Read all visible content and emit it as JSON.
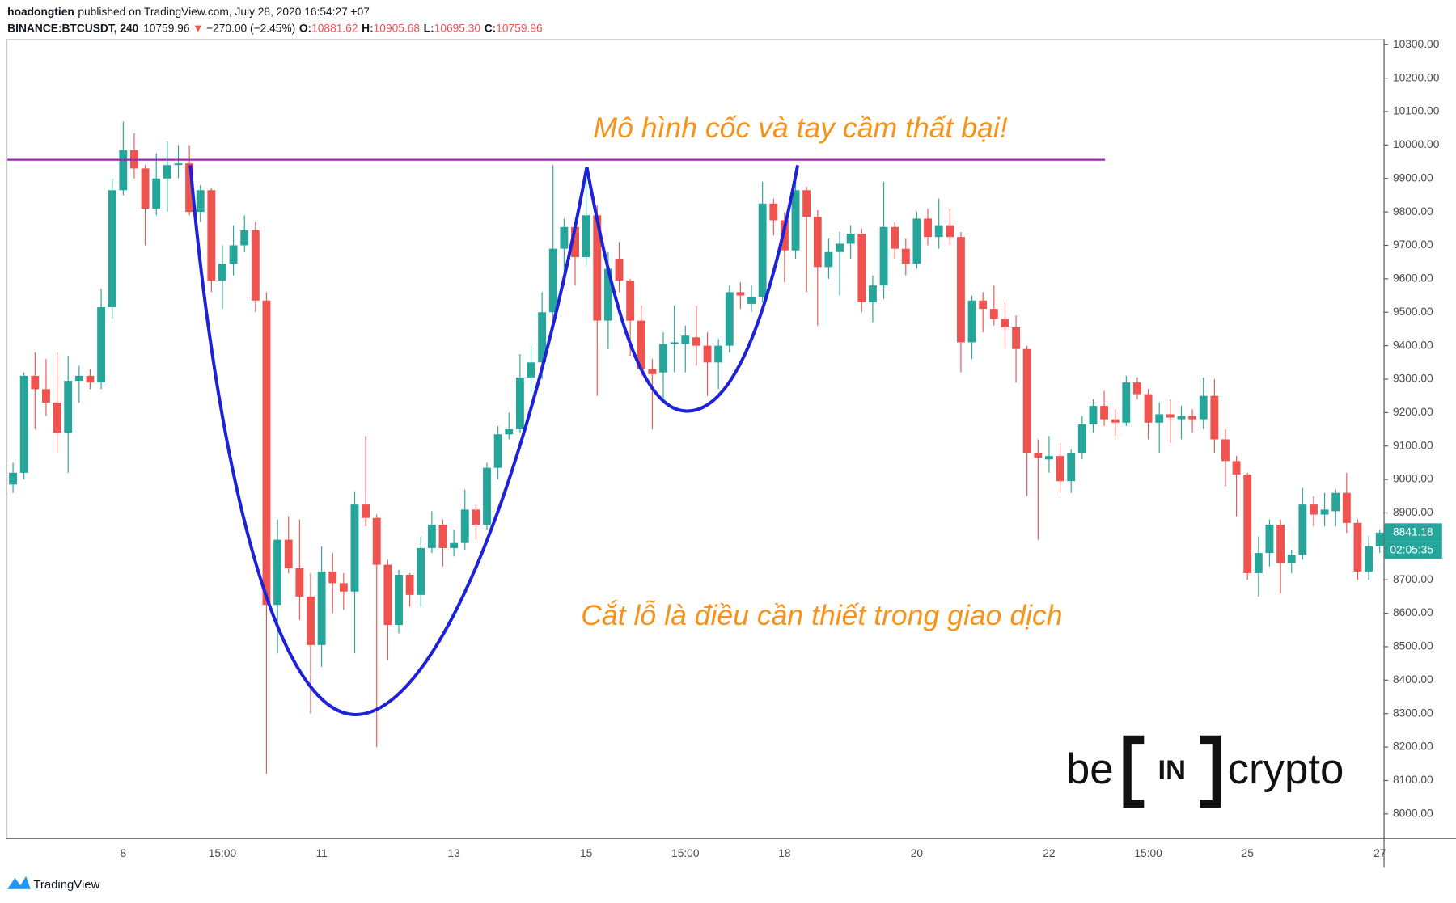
{
  "header": {
    "author": "hoadongtien",
    "published": "published on TradingView.com, July 28, 2020 16:54:27 +07",
    "symbol": "BINANCE:BTCUSDT, 240",
    "last": "10759.96",
    "arrow": "▼",
    "change": "−270.00 (−2.45%)",
    "o_label": "O:",
    "o": "10881.62",
    "h_label": "H:",
    "h": "10905.68",
    "l_label": "L:",
    "l": "10695.30",
    "c_label": "C:",
    "c": "10759.96"
  },
  "chart_data": {
    "type": "candlestick",
    "categories": [
      null,
      null,
      null,
      null,
      null,
      null,
      null,
      null,
      null,
      null,
      "8",
      null,
      null,
      null,
      null,
      null,
      null,
      null,
      null,
      "15:00",
      null,
      null,
      null,
      null,
      null,
      null,
      null,
      null,
      "11",
      null,
      null,
      null,
      null,
      null,
      null,
      null,
      null,
      null,
      null,
      null,
      "13",
      null,
      null,
      null,
      null,
      null,
      null,
      null,
      null,
      null,
      null,
      null,
      "15",
      null,
      null,
      null,
      null,
      null,
      null,
      null,
      null,
      "15:00",
      null,
      null,
      null,
      null,
      null,
      null,
      null,
      null,
      "18",
      null,
      null,
      null,
      null,
      null,
      null,
      null,
      null,
      null,
      null,
      null,
      "20",
      null,
      null,
      null,
      null,
      null,
      null,
      null,
      null,
      null,
      null,
      null,
      "22",
      null,
      null,
      null,
      null,
      null,
      null,
      null,
      null,
      "15:00",
      null,
      null,
      null,
      null,
      null,
      null,
      null,
      null,
      "25",
      null,
      null,
      null,
      null,
      null,
      null,
      null,
      null,
      null,
      null,
      null,
      "27"
    ],
    "open": [
      8985,
      9020,
      9310,
      9270,
      9230,
      9140,
      9295,
      9310,
      9290,
      9515,
      9865,
      9985,
      9930,
      9810,
      9900,
      9940,
      9945,
      9800,
      9865,
      9595,
      9645,
      9700,
      9745,
      9535,
      8625,
      8820,
      8735,
      8650,
      8505,
      8725,
      8690,
      8665,
      8925,
      8885,
      8745,
      8565,
      8715,
      8655,
      8795,
      8865,
      8795,
      8810,
      8910,
      8865,
      9035,
      9135,
      9150,
      9305,
      9350,
      9500,
      9690,
      9755,
      9665,
      9790,
      9475,
      9660,
      9595,
      9475,
      9330,
      9320,
      9405,
      9405,
      9425,
      9400,
      9350,
      9400,
      9560,
      9525,
      9545,
      9825,
      9775,
      9685,
      9865,
      9785,
      9635,
      9680,
      9705,
      9735,
      9530,
      9580,
      9755,
      9690,
      9645,
      9780,
      9725,
      9760,
      9725,
      9410,
      9535,
      9510,
      9480,
      9455,
      9390,
      9080,
      9060,
      9070,
      8995,
      9080,
      9165,
      9220,
      9180,
      9170,
      9290,
      9255,
      9170,
      9195,
      9180,
      9190,
      9180,
      9250,
      9120,
      9055,
      9015,
      8720,
      8780,
      8865,
      8750,
      8775,
      8925,
      8895,
      8905,
      8960,
      8870,
      8725,
      8800
    ],
    "high": [
      9050,
      9320,
      9380,
      9360,
      9380,
      9370,
      9340,
      9330,
      9570,
      9900,
      10070,
      10035,
      9940,
      9975,
      10010,
      10000,
      10000,
      9880,
      9870,
      9700,
      9760,
      9790,
      9770,
      9560,
      8880,
      8890,
      8880,
      8720,
      8800,
      8780,
      8720,
      8965,
      9130,
      8895,
      8760,
      8730,
      8720,
      8830,
      8905,
      8880,
      8850,
      8970,
      8925,
      9050,
      9160,
      9200,
      9375,
      9400,
      9560,
      9940,
      9780,
      9760,
      9930,
      9820,
      9680,
      9710,
      9600,
      9520,
      9360,
      9440,
      9520,
      9460,
      9520,
      9440,
      9420,
      9580,
      9590,
      9580,
      9890,
      9840,
      9800,
      9900,
      9875,
      9805,
      9720,
      9740,
      9760,
      9750,
      9610,
      9890,
      9770,
      9720,
      9800,
      9810,
      9840,
      9810,
      9740,
      9550,
      9560,
      9580,
      9530,
      9490,
      9400,
      9120,
      9130,
      9110,
      9090,
      9190,
      9240,
      9265,
      9210,
      9310,
      9305,
      9270,
      9230,
      9240,
      9220,
      9210,
      9305,
      9300,
      9150,
      9070,
      9020,
      8830,
      8880,
      8880,
      8790,
      8975,
      8950,
      8960,
      8970,
      9020,
      8880,
      8830,
      8850
    ],
    "low": [
      8960,
      9000,
      9150,
      9190,
      9080,
      9020,
      9230,
      9270,
      9270,
      9480,
      9850,
      9900,
      9700,
      9790,
      9800,
      9900,
      9790,
      9770,
      9560,
      9510,
      9610,
      9680,
      9500,
      8120,
      8480,
      8720,
      8580,
      8300,
      8440,
      8600,
      8610,
      8480,
      8860,
      8200,
      8460,
      8540,
      8620,
      8620,
      8780,
      8740,
      8770,
      8790,
      8820,
      8850,
      9000,
      9120,
      9140,
      9260,
      9300,
      9480,
      9580,
      9580,
      9640,
      9250,
      9390,
      9560,
      9370,
      9310,
      9150,
      9240,
      9320,
      9320,
      9340,
      9250,
      9270,
      9380,
      9510,
      9500,
      9530,
      9730,
      9590,
      9660,
      9560,
      9460,
      9600,
      9550,
      9660,
      9500,
      9470,
      9540,
      9660,
      9610,
      9630,
      9700,
      9690,
      9700,
      9320,
      9360,
      9440,
      9460,
      9390,
      9290,
      8950,
      8820,
      9020,
      8960,
      8960,
      9060,
      9140,
      9160,
      9130,
      9160,
      9240,
      9120,
      9080,
      9110,
      9120,
      9140,
      9150,
      9080,
      8980,
      8890,
      8700,
      8650,
      8740,
      8660,
      8720,
      8760,
      8860,
      8860,
      8860,
      8840,
      8700,
      8700,
      8780
    ],
    "close": [
      9020,
      9310,
      9270,
      9230,
      9140,
      9295,
      9310,
      9290,
      9515,
      9865,
      9985,
      9930,
      9810,
      9900,
      9940,
      9945,
      9800,
      9865,
      9595,
      9645,
      9700,
      9745,
      9535,
      8625,
      8820,
      8735,
      8650,
      8505,
      8725,
      8690,
      8665,
      8925,
      8885,
      8745,
      8565,
      8715,
      8655,
      8795,
      8865,
      8795,
      8810,
      8910,
      8865,
      9035,
      9135,
      9150,
      9305,
      9350,
      9500,
      9690,
      9755,
      9665,
      9790,
      9475,
      9630,
      9595,
      9475,
      9330,
      9315,
      9405,
      9410,
      9430,
      9400,
      9350,
      9400,
      9560,
      9550,
      9545,
      9825,
      9775,
      9685,
      9865,
      9785,
      9635,
      9680,
      9705,
      9735,
      9530,
      9580,
      9755,
      9690,
      9645,
      9780,
      9725,
      9760,
      9725,
      9410,
      9535,
      9510,
      9480,
      9455,
      9390,
      9080,
      9065,
      9070,
      8995,
      9080,
      9165,
      9220,
      9180,
      9170,
      9290,
      9255,
      9170,
      9195,
      9185,
      9190,
      9180,
      9250,
      9120,
      9055,
      9015,
      8720,
      8780,
      8865,
      8750,
      8775,
      8925,
      8895,
      8910,
      8960,
      8870,
      8725,
      8800,
      8841.18
    ],
    "up_color": "#26a69a",
    "down_color": "#ef5350",
    "ylim": [
      7928,
      10317
    ],
    "yticks": [
      {
        "value": 8000,
        "label": "8000.00"
      },
      {
        "value": 8100,
        "label": "8100.00"
      },
      {
        "value": 8200,
        "label": "8200.00"
      },
      {
        "value": 8300,
        "label": "8300.00"
      },
      {
        "value": 8400,
        "label": "8400.00"
      },
      {
        "value": 8500,
        "label": "8500.00"
      },
      {
        "value": 8600,
        "label": "8600.00"
      },
      {
        "value": 8700,
        "label": "8700.00"
      },
      {
        "value": 8800,
        "label": "8800.00"
      },
      {
        "value": 8900,
        "label": "8900.00"
      },
      {
        "value": 9000,
        "label": "9000.00"
      },
      {
        "value": 9100,
        "label": "9100.00"
      },
      {
        "value": 9200,
        "label": "9200.00"
      },
      {
        "value": 9300,
        "label": "9300.00"
      },
      {
        "value": 9400,
        "label": "9400.00"
      },
      {
        "value": 9500,
        "label": "9500.00"
      },
      {
        "value": 9600,
        "label": "9600.00"
      },
      {
        "value": 9700,
        "label": "9700.00"
      },
      {
        "value": 9800,
        "label": "9800.00"
      },
      {
        "value": 9900,
        "label": "9900.00"
      },
      {
        "value": 10000,
        "label": "10000.00"
      },
      {
        "value": 10100,
        "label": "10100.00"
      },
      {
        "value": 10200,
        "label": "10200.00"
      },
      {
        "value": 10300,
        "label": "10300.00"
      }
    ],
    "grid": false,
    "resistance": 9956,
    "resistance_color": "#9c27b0",
    "countdown": "02:05:35",
    "annotations": [
      "Mô hình cốc và tay cầm thất bại!",
      "Cắt lỗ là điều cần thiết trong giao dịch"
    ]
  },
  "logo": {
    "left": "be",
    "middle": "IN",
    "right": "crypto"
  },
  "footer": "TradingView"
}
